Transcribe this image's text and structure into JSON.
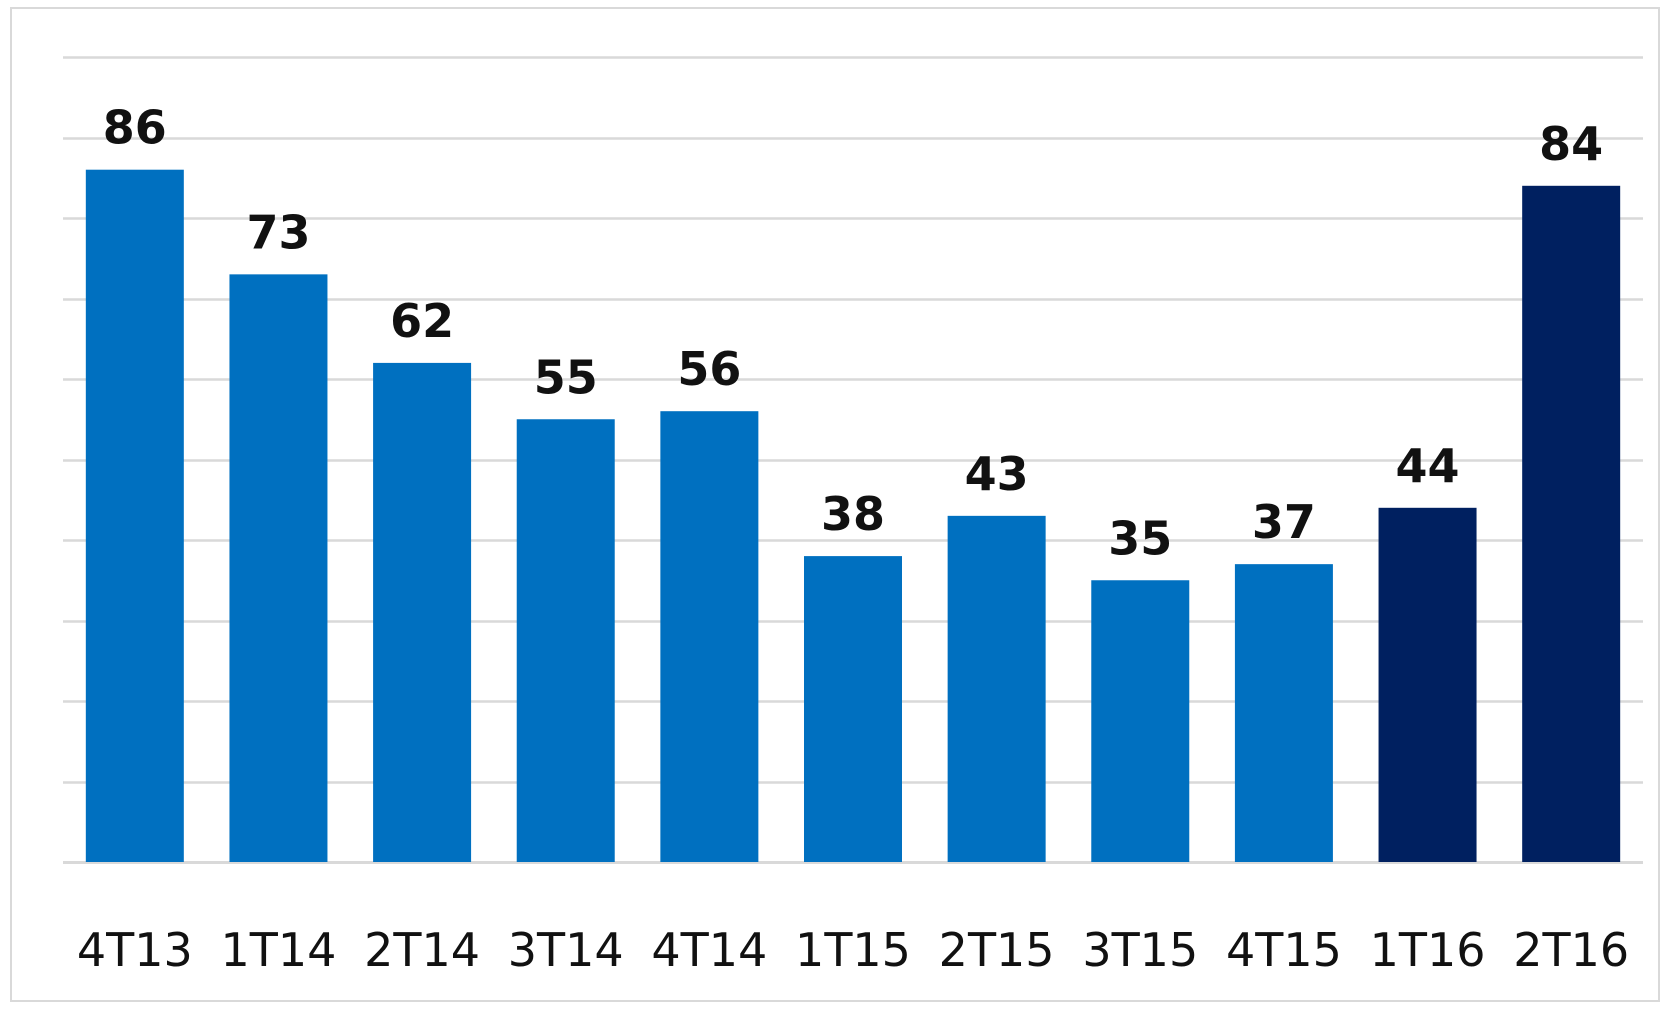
{
  "chart_data": {
    "type": "bar",
    "title": "",
    "xlabel": "",
    "ylabel": "",
    "categories": [
      "4T13",
      "1T14",
      "2T14",
      "3T14",
      "4T14",
      "1T15",
      "2T15",
      "3T15",
      "4T15",
      "1T16",
      "2T16"
    ],
    "values": [
      86,
      73,
      62,
      55,
      56,
      38,
      43,
      35,
      37,
      44,
      84
    ],
    "ylim": [
      0,
      100
    ],
    "y_gridline_step": 10,
    "grid": true,
    "legend": "none",
    "data_labels": [
      "86",
      "73",
      "62",
      "55",
      "56",
      "38",
      "43",
      "35",
      "37",
      "44",
      "84"
    ],
    "colors": [
      "#0070c0",
      "#0070c0",
      "#0070c0",
      "#0070c0",
      "#0070c0",
      "#0070c0",
      "#0070c0",
      "#0070c0",
      "#0070c0",
      "#002060",
      "#002060"
    ],
    "gridline_color": "#d9d9d9"
  }
}
